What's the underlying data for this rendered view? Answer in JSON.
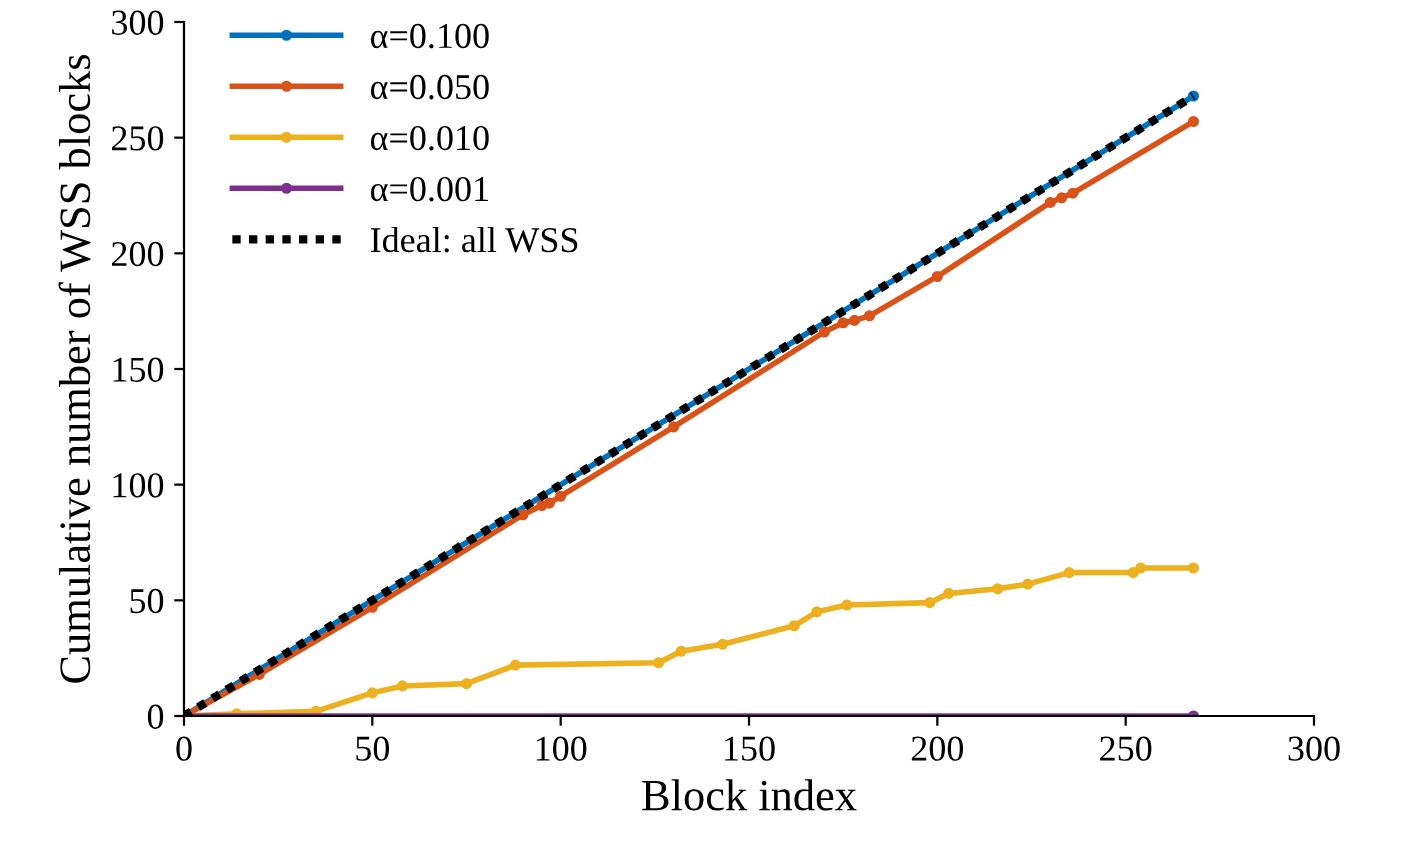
{
  "chart_data": {
    "type": "line",
    "xlabel": "Block index",
    "ylabel": "Cumulative number of WSS blocks",
    "xlim": [
      0,
      300
    ],
    "ylim": [
      0,
      300
    ],
    "xticks": [
      0,
      50,
      100,
      150,
      200,
      250,
      300
    ],
    "yticks": [
      0,
      50,
      100,
      150,
      200,
      250,
      300
    ],
    "grid": false,
    "legend": "top left",
    "series": [
      {
        "name": "α=0.100",
        "color": "#0072bd",
        "marker": "circle",
        "x": [
          0,
          268
        ],
        "values": [
          0,
          268
        ]
      },
      {
        "name": "α=0.050",
        "color": "#d95319",
        "marker": "circle",
        "x": [
          0,
          20,
          50,
          90,
          95,
          97,
          100,
          130,
          170,
          175,
          178,
          182,
          200,
          230,
          233,
          236,
          268
        ],
        "values": [
          0,
          18,
          47,
          87,
          91,
          92,
          95,
          125,
          166,
          170,
          171,
          173,
          190,
          222,
          224,
          226,
          257
        ]
      },
      {
        "name": "α=0.010",
        "color": "#edb120",
        "marker": "circle",
        "x": [
          0,
          14,
          35,
          50,
          58,
          75,
          88,
          126,
          132,
          143,
          162,
          168,
          176,
          198,
          203,
          216,
          224,
          235,
          252,
          254,
          268
        ],
        "values": [
          0,
          1,
          2,
          10,
          13,
          14,
          22,
          23,
          28,
          31,
          39,
          45,
          48,
          49,
          53,
          55,
          57,
          62,
          62,
          64,
          64
        ]
      },
      {
        "name": "α=0.001",
        "color": "#7e2f8e",
        "marker": "circle",
        "x": [
          0,
          268
        ],
        "values": [
          0,
          0
        ]
      },
      {
        "name": "Ideal: all WSS",
        "color": "#000000",
        "line_style": "dotted",
        "marker": "none",
        "x": [
          0,
          268
        ],
        "values": [
          0,
          268
        ]
      }
    ]
  }
}
